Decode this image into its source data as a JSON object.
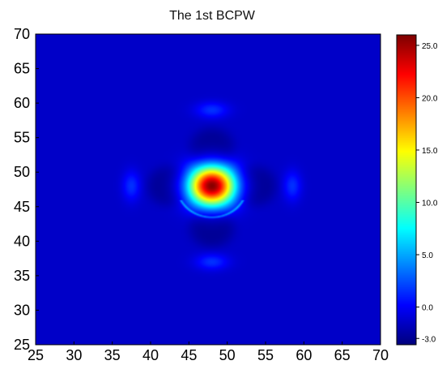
{
  "chart_data": {
    "type": "heatmap",
    "title": "The 1st BCPW",
    "xlabel": "",
    "ylabel": "",
    "xlim": [
      25,
      70
    ],
    "ylim": [
      25,
      70
    ],
    "x_ticks": [
      "25",
      "30",
      "35",
      "40",
      "45",
      "50",
      "55",
      "60",
      "65",
      "70"
    ],
    "y_ticks": [
      "25",
      "30",
      "35",
      "40",
      "45",
      "50",
      "55",
      "60",
      "65",
      "70"
    ],
    "grid": false,
    "colormap": "jet",
    "color_range": [
      -3.6,
      26.0
    ],
    "colorbar_ticks": [
      "-3.0",
      "0.0",
      "5.0",
      "10.0",
      "15.0",
      "20.0",
      "25.0"
    ],
    "background_value": -1.5,
    "features": [
      {
        "shape": "central-peak",
        "center": [
          48,
          48
        ],
        "peak": 25.8
      },
      {
        "shape": "inner-lobe",
        "center": [
          48,
          53.5
        ],
        "value": -3.0
      },
      {
        "shape": "inner-lobe",
        "center": [
          48,
          42
        ],
        "value": -3.0
      },
      {
        "shape": "inner-lobe",
        "center": [
          42.5,
          48
        ],
        "value": -3.0
      },
      {
        "shape": "inner-lobe",
        "center": [
          53.5,
          48
        ],
        "value": -3.0
      },
      {
        "shape": "outer-ring",
        "center": [
          48,
          59
        ],
        "value": 1.5
      },
      {
        "shape": "outer-ring",
        "center": [
          48,
          37
        ],
        "value": 1.5
      },
      {
        "shape": "outer-ring",
        "center": [
          37.5,
          48
        ],
        "value": 1.5
      },
      {
        "shape": "outer-ring",
        "center": [
          58.5,
          48
        ],
        "value": 1.5
      }
    ]
  }
}
